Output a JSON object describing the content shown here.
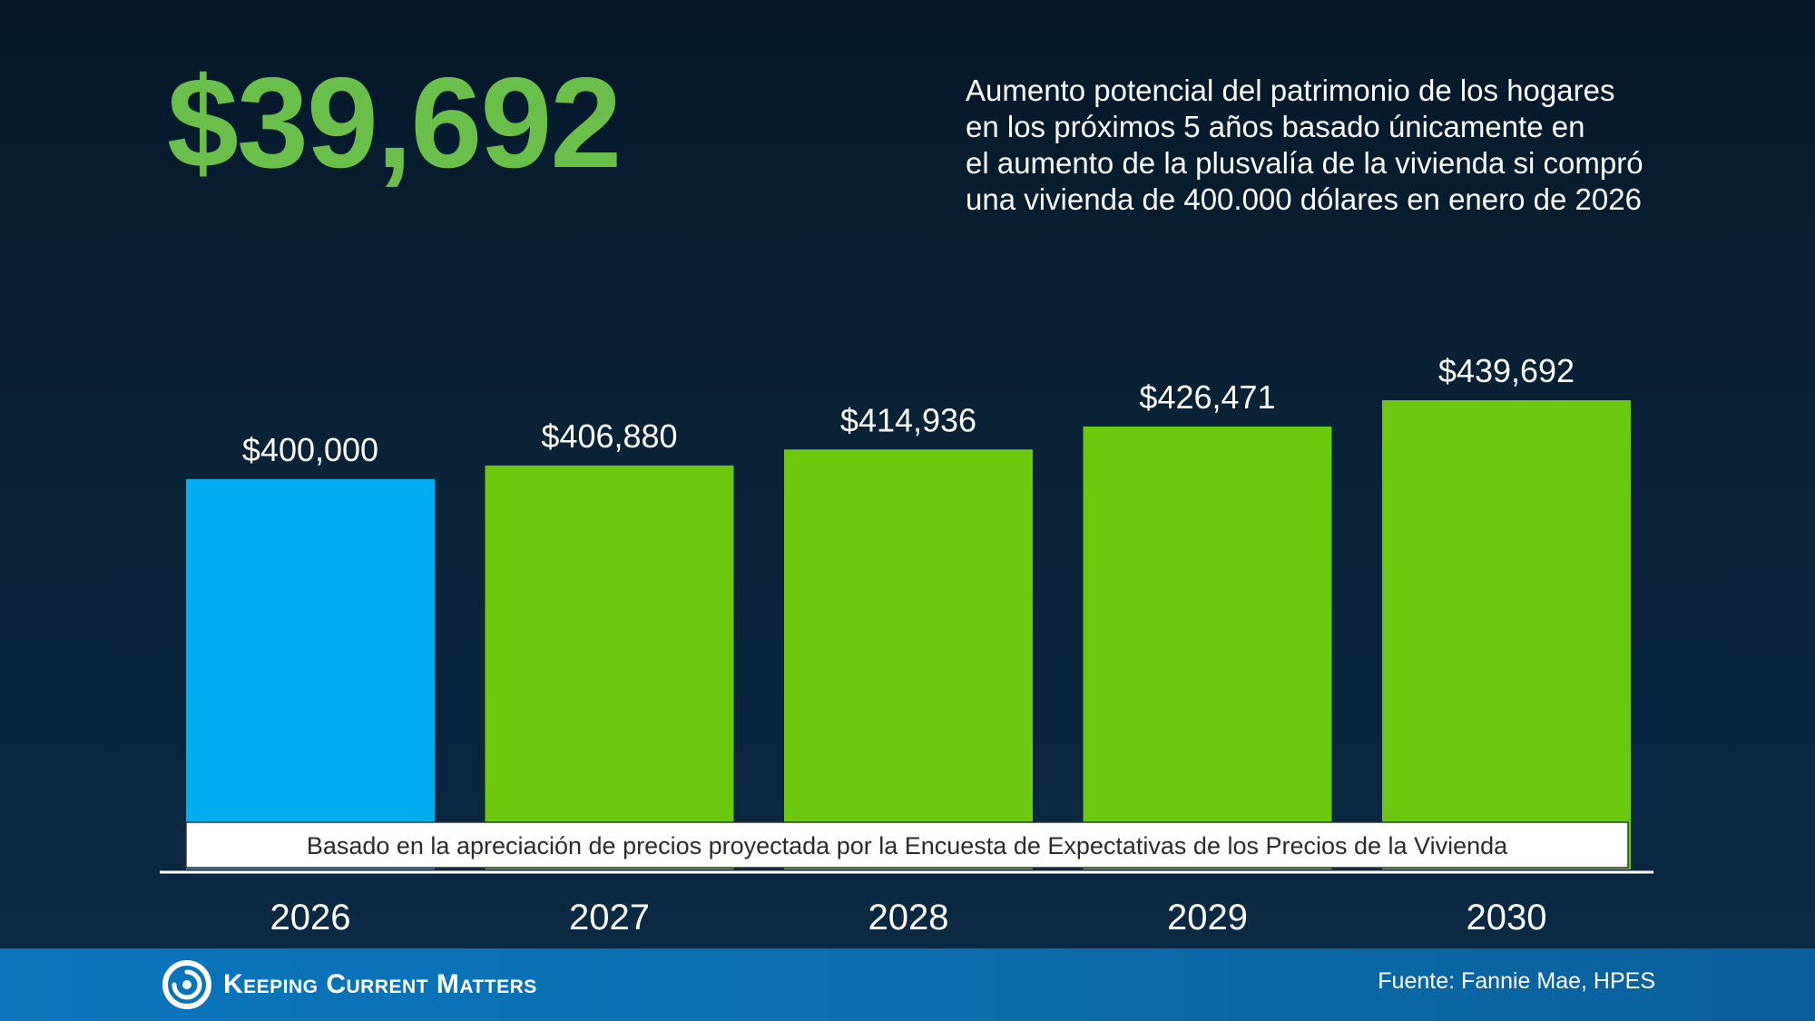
{
  "headline": {
    "amount": "$39,692",
    "description_lines": [
      "Aumento potencial del patrimonio de los hogares",
      "en los próximos 5 años basado únicamente en",
      "el aumento de la plusvalía de la vivienda si compró",
      "una vivienda de 400.000 dólares en enero de 2026"
    ]
  },
  "colors": {
    "accent": "#6abf4b",
    "baseline_bar": "#00aeef",
    "projection_bar": "#6cc70f",
    "footer": "#0a76bd"
  },
  "chart_data": {
    "type": "bar",
    "categories": [
      "2026",
      "2027",
      "2028",
      "2029",
      "2030"
    ],
    "values": [
      400000,
      406880,
      414936,
      426471,
      439692
    ],
    "value_labels": [
      "$400,000",
      "$406,880",
      "$414,936",
      "$426,471",
      "$439,692"
    ],
    "title": "",
    "xlabel": "",
    "ylabel": "",
    "ylim": [
      0,
      439692
    ],
    "grid": false,
    "legend": "none",
    "annotation": "Basado en la apreciación de precios proyectada por la Encuesta de Expectativas de los Precios de la Vivienda"
  },
  "footer": {
    "brand": "Keeping Current Matters",
    "brand_icon": "swirl-logo-icon",
    "source": "Fuente: Fannie Mae, HPES"
  }
}
